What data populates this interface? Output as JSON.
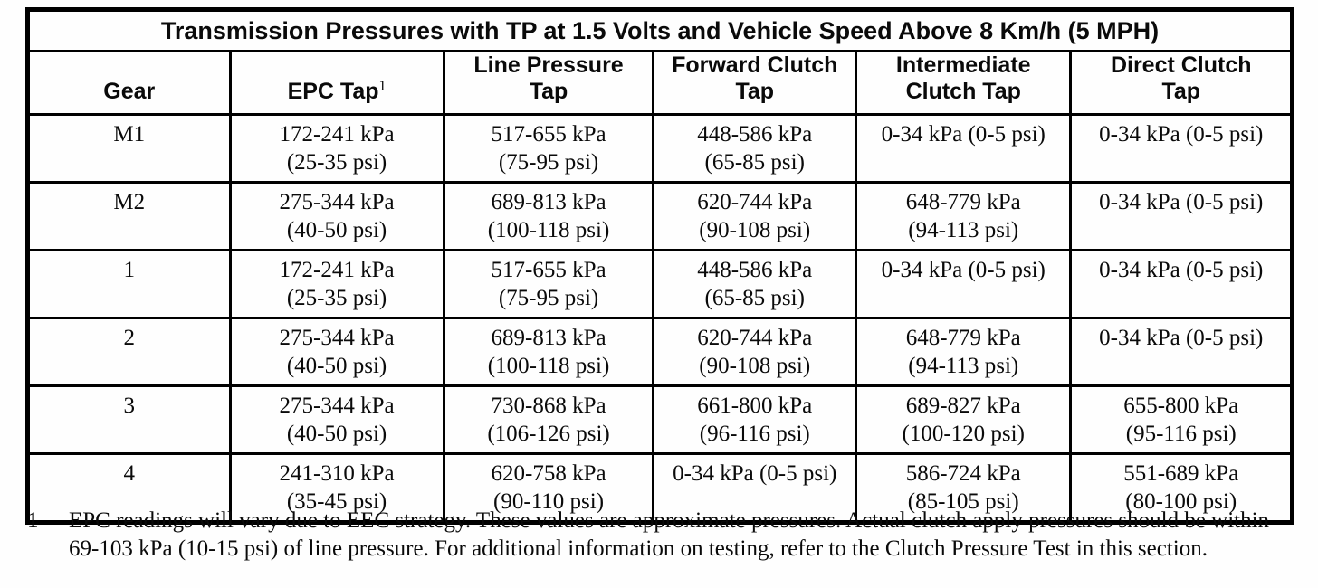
{
  "table": {
    "title": "Transmission Pressures with TP at 1.5 Volts and Vehicle Speed Above 8 Km/h (5 MPH)",
    "headers": [
      {
        "line1": "Gear",
        "line2": "",
        "sup": ""
      },
      {
        "line1": "EPC Tap",
        "line2": "",
        "sup": "1"
      },
      {
        "line1": "Line Pressure",
        "line2": "Tap",
        "sup": ""
      },
      {
        "line1": "Forward Clutch",
        "line2": "Tap",
        "sup": ""
      },
      {
        "line1": "Intermediate",
        "line2": "Clutch Tap",
        "sup": ""
      },
      {
        "line1": "Direct Clutch",
        "line2": "Tap",
        "sup": ""
      }
    ],
    "rows": [
      {
        "gear": "M1",
        "cells": [
          {
            "kpa": "172-241 kPa",
            "psi": "(25-35 psi)"
          },
          {
            "kpa": "517-655 kPa",
            "psi": "(75-95 psi)"
          },
          {
            "kpa": "448-586 kPa",
            "psi": "(65-85 psi)"
          },
          {
            "kpa": "0-34 kPa (0-5 psi)",
            "psi": ""
          },
          {
            "kpa": "0-34 kPa (0-5 psi)",
            "psi": ""
          }
        ]
      },
      {
        "gear": "M2",
        "cells": [
          {
            "kpa": "275-344 kPa",
            "psi": "(40-50 psi)"
          },
          {
            "kpa": "689-813 kPa",
            "psi": "(100-118 psi)"
          },
          {
            "kpa": "620-744 kPa",
            "psi": "(90-108 psi)"
          },
          {
            "kpa": "648-779 kPa",
            "psi": "(94-113 psi)"
          },
          {
            "kpa": "0-34 kPa (0-5 psi)",
            "psi": ""
          }
        ]
      },
      {
        "gear": "1",
        "cells": [
          {
            "kpa": "172-241 kPa",
            "psi": "(25-35 psi)"
          },
          {
            "kpa": "517-655 kPa",
            "psi": "(75-95 psi)"
          },
          {
            "kpa": "448-586 kPa",
            "psi": "(65-85 psi)"
          },
          {
            "kpa": "0-34 kPa (0-5 psi)",
            "psi": ""
          },
          {
            "kpa": "0-34 kPa (0-5 psi)",
            "psi": ""
          }
        ]
      },
      {
        "gear": "2",
        "cells": [
          {
            "kpa": "275-344 kPa",
            "psi": "(40-50 psi)"
          },
          {
            "kpa": "689-813 kPa",
            "psi": "(100-118 psi)"
          },
          {
            "kpa": "620-744 kPa",
            "psi": "(90-108 psi)"
          },
          {
            "kpa": "648-779 kPa",
            "psi": "(94-113 psi)"
          },
          {
            "kpa": "0-34 kPa (0-5 psi)",
            "psi": ""
          }
        ]
      },
      {
        "gear": "3",
        "cells": [
          {
            "kpa": "275-344 kPa",
            "psi": "(40-50 psi)"
          },
          {
            "kpa": "730-868 kPa",
            "psi": "(106-126 psi)"
          },
          {
            "kpa": "661-800 kPa",
            "psi": "(96-116 psi)"
          },
          {
            "kpa": "689-827 kPa",
            "psi": "(100-120 psi)"
          },
          {
            "kpa": "655-800 kPa",
            "psi": "(95-116 psi)"
          }
        ]
      },
      {
        "gear": "4",
        "cells": [
          {
            "kpa": "241-310 kPa",
            "psi": "(35-45 psi)"
          },
          {
            "kpa": "620-758 kPa",
            "psi": "(90-110 psi)"
          },
          {
            "kpa": "0-34 kPa (0-5 psi)",
            "psi": ""
          },
          {
            "kpa": "586-724 kPa",
            "psi": "(85-105 psi)"
          },
          {
            "kpa": "551-689 kPa",
            "psi": "(80-100 psi)"
          }
        ]
      }
    ]
  },
  "footnote": {
    "marker": "1",
    "text": "EPC readings will vary due to EEC strategy. These values are approximate pressures. Actual clutch apply pressures should be within 69-103 kPa (10-15 psi) of line pressure. For additional information on testing, refer to the Clutch Pressure Test in this section."
  }
}
